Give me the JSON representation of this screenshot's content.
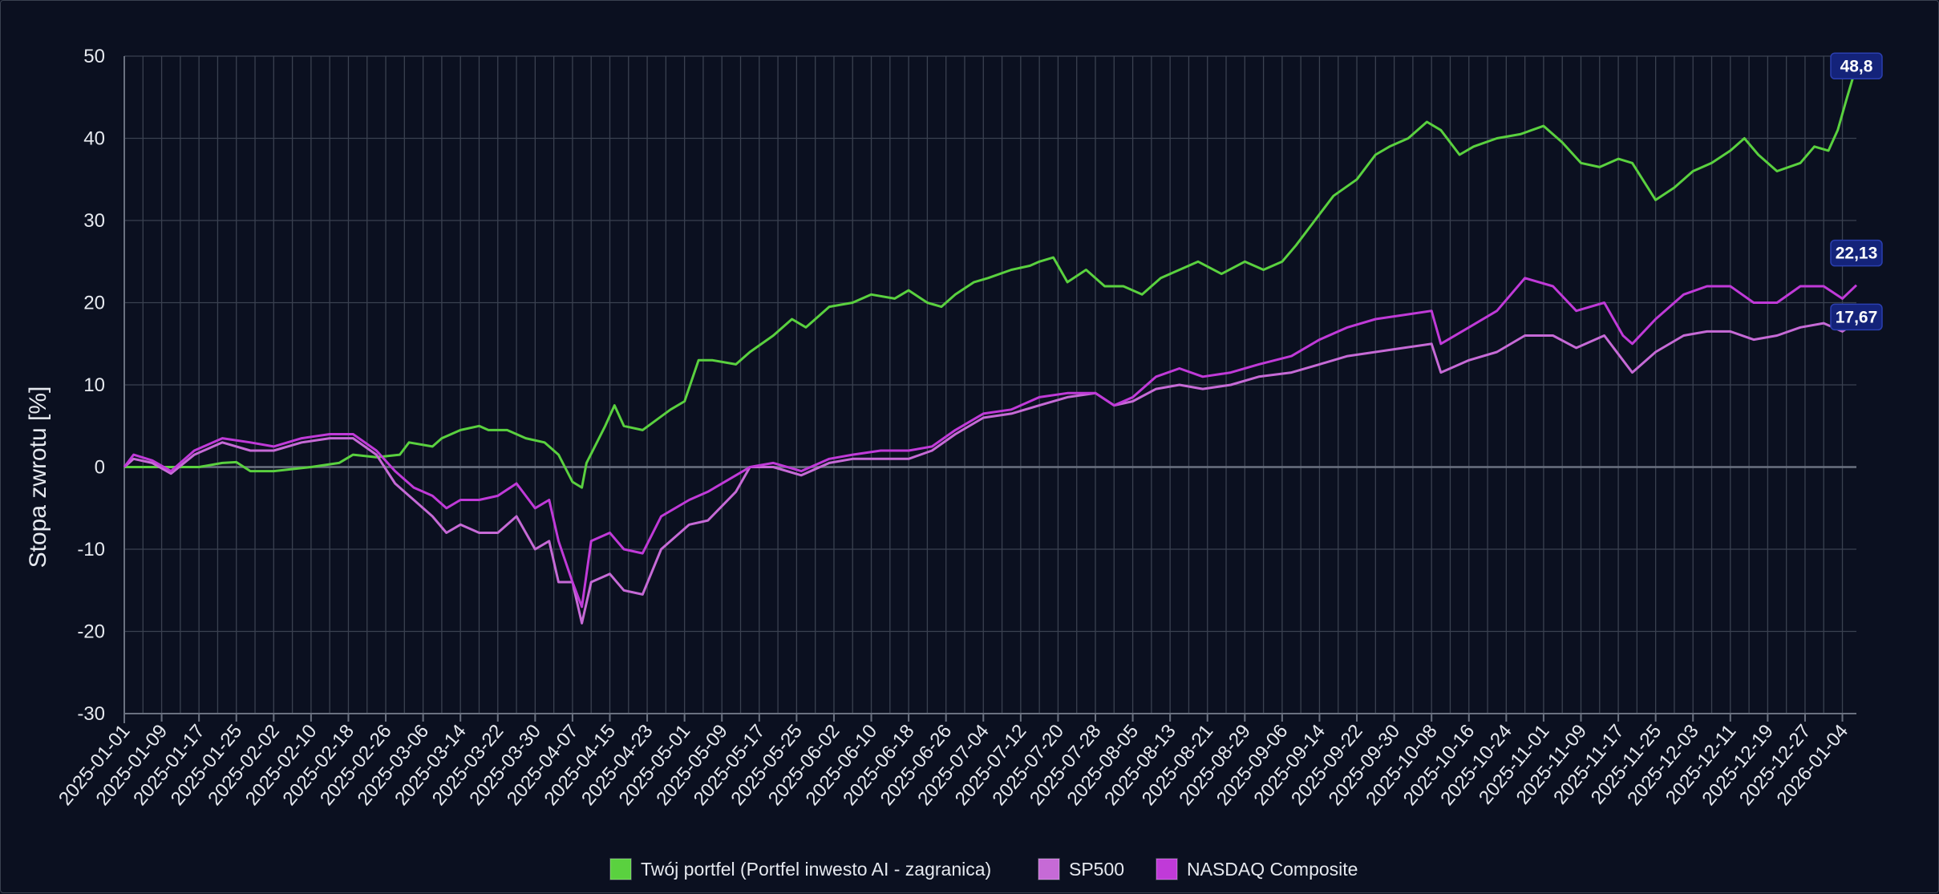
{
  "chart_data": {
    "type": "line",
    "title": "",
    "xlabel": "",
    "ylabel": "Stopa zwrotu [%]",
    "ylim": [
      -30,
      50
    ],
    "yticks": [
      "50",
      "40",
      "30",
      "20",
      "10",
      "0",
      "-10",
      "-20",
      "-30"
    ],
    "grid": true,
    "legend_position": "bottom",
    "x_start": "2025-01-01",
    "x_end": "2026-01-07",
    "x_tick_labels": [
      "2025-01-01",
      "2025-01-09",
      "2025-01-17",
      "2025-01-25",
      "2025-02-02",
      "2025-02-10",
      "2025-02-18",
      "2025-02-26",
      "2025-03-06",
      "2025-03-14",
      "2025-03-22",
      "2025-03-30",
      "2025-04-07",
      "2025-04-15",
      "2025-04-23",
      "2025-05-01",
      "2025-05-09",
      "2025-05-17",
      "2025-05-25",
      "2025-06-02",
      "2025-06-10",
      "2025-06-18",
      "2025-06-26",
      "2025-07-04",
      "2025-07-12",
      "2025-07-20",
      "2025-07-28",
      "2025-08-05",
      "2025-08-13",
      "2025-08-21",
      "2025-08-29",
      "2025-09-06",
      "2025-09-14",
      "2025-09-22",
      "2025-09-30",
      "2025-10-08",
      "2025-10-16",
      "2025-10-24",
      "2025-11-01",
      "2025-11-09",
      "2025-11-17",
      "2025-11-25",
      "2025-12-03",
      "2025-12-11",
      "2025-12-19",
      "2025-12-27",
      "2026-01-04"
    ],
    "series": [
      {
        "name": "Twój portfel (Portfel inwesto AI - zagranica)",
        "color": "#5ad13f",
        "end_label": "48,8",
        "x": [
          "2025-01-01",
          "2025-01-03",
          "2025-01-10",
          "2025-01-17",
          "2025-01-22",
          "2025-01-25",
          "2025-01-28",
          "2025-02-02",
          "2025-02-10",
          "2025-02-16",
          "2025-02-19",
          "2025-02-24",
          "2025-03-01",
          "2025-03-03",
          "2025-03-08",
          "2025-03-10",
          "2025-03-14",
          "2025-03-18",
          "2025-03-20",
          "2025-03-24",
          "2025-03-28",
          "2025-04-01",
          "2025-04-04",
          "2025-04-07",
          "2025-04-09",
          "2025-04-10",
          "2025-04-14",
          "2025-04-16",
          "2025-04-18",
          "2025-04-22",
          "2025-04-28",
          "2025-05-01",
          "2025-05-04",
          "2025-05-07",
          "2025-05-12",
          "2025-05-15",
          "2025-05-20",
          "2025-05-24",
          "2025-05-27",
          "2025-06-01",
          "2025-06-06",
          "2025-06-10",
          "2025-06-15",
          "2025-06-18",
          "2025-06-22",
          "2025-06-25",
          "2025-06-28",
          "2025-07-02",
          "2025-07-05",
          "2025-07-10",
          "2025-07-14",
          "2025-07-16",
          "2025-07-19",
          "2025-07-22",
          "2025-07-26",
          "2025-07-30",
          "2025-08-03",
          "2025-08-07",
          "2025-08-11",
          "2025-08-15",
          "2025-08-19",
          "2025-08-24",
          "2025-08-29",
          "2025-09-02",
          "2025-09-06",
          "2025-09-09",
          "2025-09-13",
          "2025-09-17",
          "2025-09-22",
          "2025-09-26",
          "2025-09-29",
          "2025-10-03",
          "2025-10-07",
          "2025-10-10",
          "2025-10-14",
          "2025-10-17",
          "2025-10-22",
          "2025-10-27",
          "2025-11-01",
          "2025-11-05",
          "2025-11-09",
          "2025-11-13",
          "2025-11-17",
          "2025-11-20",
          "2025-11-25",
          "2025-11-29",
          "2025-12-03",
          "2025-12-07",
          "2025-12-11",
          "2025-12-14",
          "2025-12-17",
          "2025-12-21",
          "2025-12-26",
          "2025-12-29",
          "2026-01-01",
          "2026-01-03",
          "2026-01-05",
          "2026-01-07"
        ],
        "y": [
          0,
          0,
          0,
          0,
          0.5,
          0.6,
          -0.5,
          -0.5,
          0,
          0.5,
          1.5,
          1.2,
          1.5,
          3,
          2.5,
          3.5,
          4.5,
          5,
          4.5,
          4.5,
          3.5,
          3,
          1.5,
          -1.8,
          -2.5,
          0.5,
          5,
          7.5,
          5,
          4.5,
          7,
          8,
          13,
          13,
          12.5,
          14,
          16,
          18,
          17,
          19.5,
          20,
          21,
          20.5,
          21.5,
          20,
          19.5,
          21,
          22.5,
          23,
          24,
          24.5,
          25,
          25.5,
          22.5,
          24,
          22,
          22,
          21,
          23,
          24,
          25,
          23.5,
          25,
          24,
          25,
          27,
          30,
          33,
          35,
          38,
          39,
          40,
          42,
          41,
          38,
          39,
          40,
          40.5,
          41.5,
          39.5,
          37,
          36.5,
          37.5,
          37,
          32.5,
          34,
          36,
          37,
          38.5,
          40,
          38,
          36,
          37,
          39,
          38.5,
          41,
          45,
          48.8
        ]
      },
      {
        "name": "SP500",
        "color": "#c66ad6",
        "end_label": "17,67",
        "x": [
          "2025-01-01",
          "2025-01-03",
          "2025-01-07",
          "2025-01-11",
          "2025-01-16",
          "2025-01-22",
          "2025-01-28",
          "2025-02-02",
          "2025-02-08",
          "2025-02-14",
          "2025-02-19",
          "2025-02-24",
          "2025-02-28",
          "2025-03-04",
          "2025-03-08",
          "2025-03-11",
          "2025-03-14",
          "2025-03-18",
          "2025-03-22",
          "2025-03-26",
          "2025-03-30",
          "2025-04-02",
          "2025-04-04",
          "2025-04-07",
          "2025-04-09",
          "2025-04-11",
          "2025-04-15",
          "2025-04-18",
          "2025-04-22",
          "2025-04-26",
          "2025-05-02",
          "2025-05-06",
          "2025-05-12",
          "2025-05-15",
          "2025-05-20",
          "2025-05-26",
          "2025-06-01",
          "2025-06-06",
          "2025-06-12",
          "2025-06-18",
          "2025-06-23",
          "2025-06-28",
          "2025-07-04",
          "2025-07-10",
          "2025-07-16",
          "2025-07-22",
          "2025-07-28",
          "2025-08-01",
          "2025-08-05",
          "2025-08-10",
          "2025-08-15",
          "2025-08-20",
          "2025-08-26",
          "2025-09-01",
          "2025-09-08",
          "2025-09-14",
          "2025-09-20",
          "2025-09-26",
          "2025-10-02",
          "2025-10-08",
          "2025-10-10",
          "2025-10-16",
          "2025-10-22",
          "2025-10-28",
          "2025-11-03",
          "2025-11-08",
          "2025-11-14",
          "2025-11-18",
          "2025-11-20",
          "2025-11-25",
          "2025-12-01",
          "2025-12-06",
          "2025-12-11",
          "2025-12-16",
          "2025-12-21",
          "2025-12-26",
          "2025-12-31",
          "2026-01-04",
          "2026-01-07"
        ],
        "y": [
          0,
          1,
          0.5,
          -0.8,
          1.5,
          3,
          2,
          2,
          3,
          3.5,
          3.5,
          1.5,
          -2,
          -4,
          -6,
          -8,
          -7,
          -8,
          -8,
          -6,
          -10,
          -9,
          -14,
          -14,
          -19,
          -14,
          -13,
          -15,
          -15.5,
          -10,
          -7,
          -6.5,
          -3,
          0,
          0,
          -1,
          0.5,
          1,
          1,
          1,
          2,
          4,
          6,
          6.5,
          7.5,
          8.5,
          9,
          7.5,
          8,
          9.5,
          10,
          9.5,
          10,
          11,
          11.5,
          12.5,
          13.5,
          14,
          14.5,
          15,
          11.5,
          13,
          14,
          16,
          16,
          14.5,
          16,
          13,
          11.5,
          14,
          16,
          16.5,
          16.5,
          15.5,
          16,
          17,
          17.5,
          16.5,
          17.67
        ]
      },
      {
        "name": "NASDAQ Composite",
        "color": "#c03ad8",
        "end_label": "22,13",
        "x": [
          "2025-01-01",
          "2025-01-03",
          "2025-01-07",
          "2025-01-11",
          "2025-01-16",
          "2025-01-22",
          "2025-01-28",
          "2025-02-02",
          "2025-02-08",
          "2025-02-14",
          "2025-02-19",
          "2025-02-24",
          "2025-02-28",
          "2025-03-04",
          "2025-03-08",
          "2025-03-11",
          "2025-03-14",
          "2025-03-18",
          "2025-03-22",
          "2025-03-26",
          "2025-03-30",
          "2025-04-02",
          "2025-04-04",
          "2025-04-07",
          "2025-04-09",
          "2025-04-11",
          "2025-04-15",
          "2025-04-18",
          "2025-04-22",
          "2025-04-26",
          "2025-05-02",
          "2025-05-06",
          "2025-05-12",
          "2025-05-15",
          "2025-05-20",
          "2025-05-26",
          "2025-06-01",
          "2025-06-06",
          "2025-06-12",
          "2025-06-18",
          "2025-06-23",
          "2025-06-28",
          "2025-07-04",
          "2025-07-10",
          "2025-07-16",
          "2025-07-22",
          "2025-07-28",
          "2025-08-01",
          "2025-08-05",
          "2025-08-10",
          "2025-08-15",
          "2025-08-20",
          "2025-08-26",
          "2025-09-01",
          "2025-09-08",
          "2025-09-14",
          "2025-09-20",
          "2025-09-26",
          "2025-10-02",
          "2025-10-08",
          "2025-10-10",
          "2025-10-16",
          "2025-10-22",
          "2025-10-28",
          "2025-11-03",
          "2025-11-08",
          "2025-11-14",
          "2025-11-18",
          "2025-11-20",
          "2025-11-25",
          "2025-12-01",
          "2025-12-06",
          "2025-12-11",
          "2025-12-16",
          "2025-12-21",
          "2025-12-26",
          "2025-12-31",
          "2026-01-04",
          "2026-01-07"
        ],
        "y": [
          0,
          1.5,
          0.8,
          -0.5,
          2,
          3.5,
          3,
          2.5,
          3.5,
          4,
          4,
          2,
          -0.5,
          -2.5,
          -3.5,
          -5,
          -4,
          -4,
          -3.5,
          -2,
          -5,
          -4,
          -9,
          -14,
          -17,
          -9,
          -8,
          -10,
          -10.5,
          -6,
          -4,
          -3,
          -1,
          0,
          0.5,
          -0.5,
          1,
          1.5,
          2,
          2,
          2.5,
          4.5,
          6.5,
          7,
          8.5,
          9,
          9,
          7.5,
          8.5,
          11,
          12,
          11,
          11.5,
          12.5,
          13.5,
          15.5,
          17,
          18,
          18.5,
          19,
          15,
          17,
          19,
          23,
          22,
          19,
          20,
          16,
          15,
          18,
          21,
          22,
          22,
          20,
          20,
          22,
          22,
          20.5,
          22.13
        ]
      }
    ]
  }
}
